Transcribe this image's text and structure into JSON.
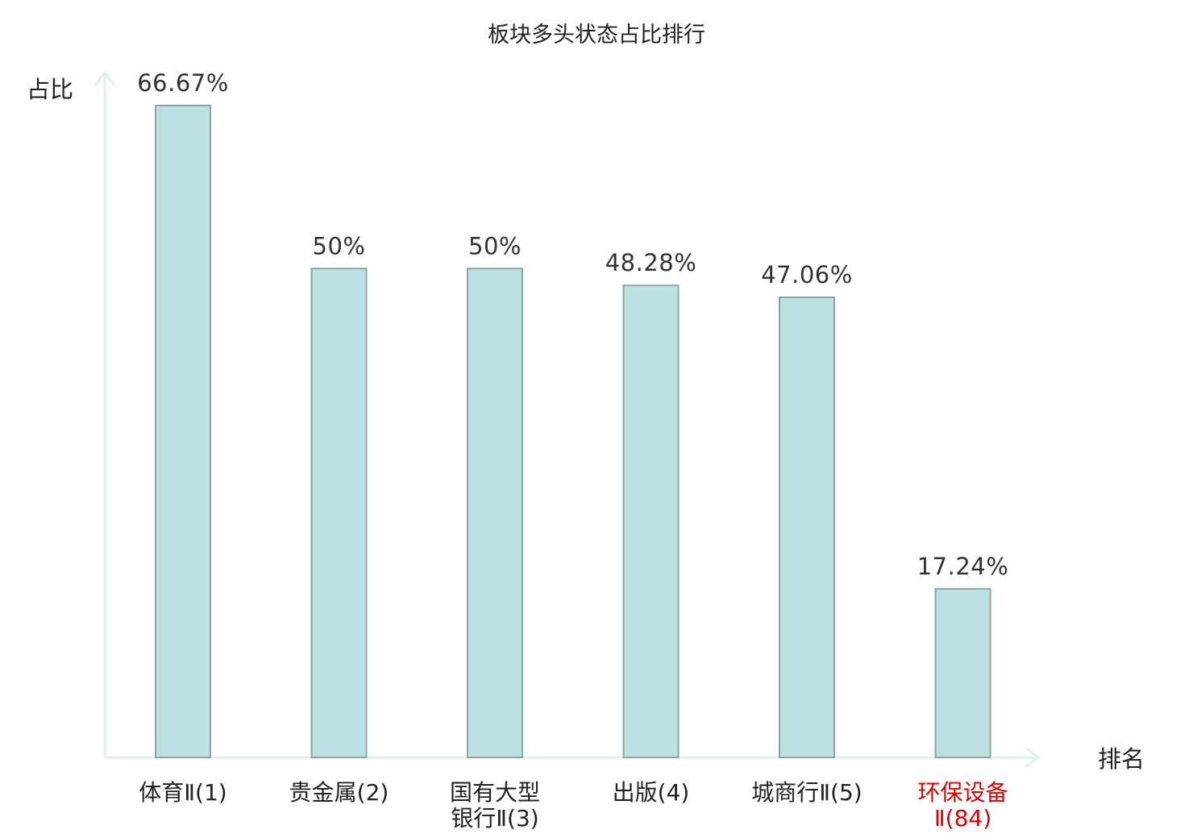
{
  "chart_data": {
    "type": "bar",
    "title": "板块多头状态占比排行",
    "xlabel": "排名",
    "ylabel": "占比",
    "categories": [
      {
        "lines": [
          "体育Ⅱ(1)"
        ],
        "highlight": false
      },
      {
        "lines": [
          "贵金属(2)"
        ],
        "highlight": false
      },
      {
        "lines": [
          "国有大型",
          "银行Ⅱ(3)"
        ],
        "highlight": false
      },
      {
        "lines": [
          "出版(4)"
        ],
        "highlight": false
      },
      {
        "lines": [
          "城商行Ⅱ(5)"
        ],
        "highlight": false
      },
      {
        "lines": [
          "环保设备",
          "Ⅱ(84)"
        ],
        "highlight": true
      }
    ],
    "values": [
      66.67,
      50,
      50,
      48.28,
      47.06,
      17.24
    ],
    "value_labels": [
      "66.67%",
      "50%",
      "50%",
      "48.28%",
      "47.06%",
      "17.24%"
    ],
    "ylim": [
      0,
      66.67
    ],
    "grid": false,
    "legend": "none",
    "colors": {
      "bar_fill": "#bde0e3",
      "bar_stroke": "#8aa6a8",
      "axis": "#ddf1ee",
      "highlight_text": "#dd0000",
      "text": "#222222"
    }
  }
}
